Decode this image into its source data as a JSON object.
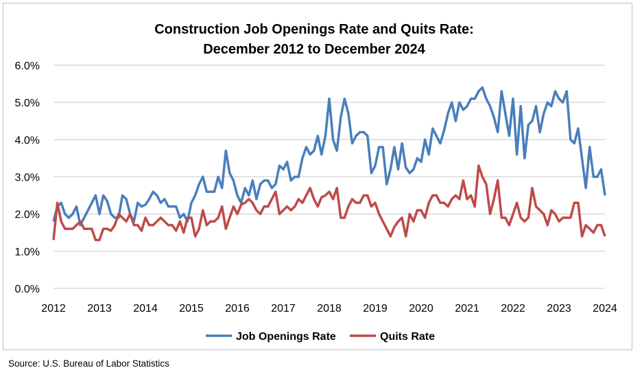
{
  "chart_data": {
    "type": "line",
    "title": [
      "Construction Job Openings Rate and Quits Rate:",
      "December 2012 to December 2024"
    ],
    "xlabel": "",
    "ylabel": "",
    "x_start": "2012-12",
    "x_end": "2024-12",
    "x_frequency": "monthly",
    "x_ticks": [
      "2012",
      "2013",
      "2014",
      "2015",
      "2016",
      "2017",
      "2018",
      "2019",
      "2020",
      "2021",
      "2022",
      "2023",
      "2024"
    ],
    "y_ticks": [
      "0.0%",
      "1.0%",
      "2.0%",
      "3.0%",
      "4.0%",
      "5.0%",
      "6.0%"
    ],
    "ylim": [
      0,
      6
    ],
    "grid": "horizontal",
    "legend_position": "bottom",
    "series": [
      {
        "name": "Job Openings Rate",
        "color": "#4a7ebb",
        "values": [
          1.8,
          2.2,
          2.3,
          2.0,
          1.9,
          2.0,
          2.2,
          1.7,
          1.9,
          2.1,
          2.3,
          2.5,
          2.0,
          2.5,
          2.35,
          2.0,
          1.9,
          1.9,
          2.5,
          2.4,
          2.0,
          1.8,
          2.3,
          2.2,
          2.25,
          2.4,
          2.6,
          2.5,
          2.3,
          2.4,
          2.2,
          2.2,
          2.2,
          1.9,
          2.0,
          1.8,
          2.3,
          2.5,
          2.8,
          3.0,
          2.6,
          2.6,
          2.6,
          3.0,
          2.7,
          3.7,
          3.1,
          2.9,
          2.5,
          2.3,
          2.7,
          2.5,
          2.9,
          2.4,
          2.8,
          2.9,
          2.9,
          2.7,
          2.8,
          3.3,
          3.2,
          3.4,
          2.9,
          3.0,
          3.0,
          3.5,
          3.8,
          3.6,
          3.7,
          4.1,
          3.6,
          4.1,
          5.1,
          4.0,
          3.7,
          4.6,
          5.1,
          4.7,
          3.9,
          4.1,
          4.2,
          4.2,
          4.1,
          3.1,
          3.3,
          3.8,
          3.8,
          2.8,
          3.2,
          3.8,
          3.2,
          3.9,
          3.25,
          3.1,
          3.2,
          3.5,
          3.4,
          4.0,
          3.6,
          4.3,
          4.1,
          3.9,
          4.25,
          4.7,
          5.0,
          4.5,
          5.0,
          4.8,
          4.9,
          5.1,
          5.1,
          5.3,
          5.4,
          5.1,
          4.9,
          4.6,
          4.2,
          5.3,
          4.7,
          4.1,
          5.1,
          3.6,
          4.9,
          3.5,
          4.4,
          4.5,
          4.9,
          4.2,
          4.7,
          5.0,
          4.9,
          5.3,
          5.1,
          5.0,
          5.3,
          4.0,
          3.9,
          4.3,
          3.5,
          2.7,
          3.8,
          3.0,
          3.0,
          3.2,
          2.5
        ]
      },
      {
        "name": "Quits Rate",
        "color": "#be4b48",
        "values": [
          1.3,
          2.3,
          1.8,
          1.6,
          1.6,
          1.6,
          1.7,
          1.8,
          1.6,
          1.6,
          1.6,
          1.3,
          1.3,
          1.6,
          1.6,
          1.55,
          1.7,
          2.0,
          1.9,
          1.8,
          2.0,
          1.7,
          1.7,
          1.55,
          1.9,
          1.7,
          1.7,
          1.8,
          1.9,
          1.8,
          1.7,
          1.7,
          1.55,
          1.8,
          1.5,
          1.9,
          1.9,
          1.4,
          1.6,
          2.1,
          1.7,
          1.8,
          1.8,
          1.9,
          2.2,
          1.6,
          1.9,
          2.2,
          2.0,
          2.25,
          2.3,
          2.4,
          2.3,
          2.1,
          2.0,
          2.2,
          2.2,
          2.4,
          2.6,
          2.0,
          2.1,
          2.2,
          2.1,
          2.2,
          2.4,
          2.3,
          2.5,
          2.7,
          2.4,
          2.2,
          2.45,
          2.5,
          2.6,
          2.4,
          2.7,
          1.9,
          1.9,
          2.2,
          2.4,
          2.3,
          2.3,
          2.5,
          2.5,
          2.2,
          2.3,
          2.0,
          1.8,
          1.6,
          1.4,
          1.65,
          1.8,
          1.9,
          1.4,
          2.0,
          1.8,
          2.1,
          2.1,
          1.9,
          2.3,
          2.5,
          2.5,
          2.3,
          2.3,
          2.2,
          2.4,
          2.5,
          2.4,
          2.9,
          2.4,
          2.5,
          2.2,
          3.3,
          3.0,
          2.8,
          2.0,
          2.4,
          2.9,
          1.9,
          1.9,
          1.7,
          2.0,
          2.3,
          1.9,
          1.8,
          1.9,
          2.7,
          2.2,
          2.1,
          2.0,
          1.7,
          2.1,
          2.0,
          1.8,
          1.9,
          1.9,
          1.9,
          2.3,
          2.3,
          1.4,
          1.7,
          1.6,
          1.5,
          1.7,
          1.7,
          1.4
        ]
      }
    ]
  },
  "source": "Source: U.S. Bureau of Labor Statistics"
}
